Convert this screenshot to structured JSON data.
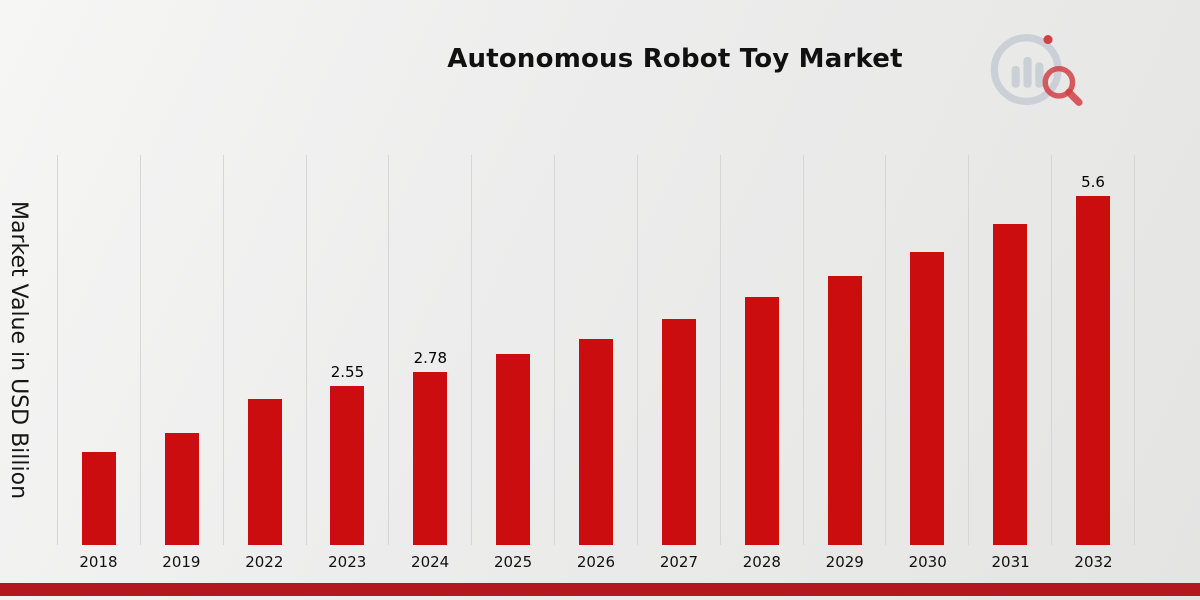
{
  "header": {
    "title": "Autonomous Robot Toy Market"
  },
  "colors": {
    "bar": "#CC0D10",
    "footer_strip": "#B2181D",
    "gridline": "#D6D6D6",
    "logo_gray": "#C9CED6",
    "logo_red": "#CF3338"
  },
  "chart_data": {
    "type": "bar",
    "title": "Autonomous Robot Toy Market",
    "xlabel": "",
    "ylabel": "Market Value in USD Billion",
    "categories": [
      "2018",
      "2019",
      "2022",
      "2023",
      "2024",
      "2025",
      "2026",
      "2027",
      "2028",
      "2029",
      "2030",
      "2031",
      "2032"
    ],
    "values": [
      1.49,
      1.8,
      2.34,
      2.55,
      2.78,
      3.06,
      3.3,
      3.62,
      3.97,
      4.31,
      4.7,
      5.14,
      5.6
    ],
    "point_labels": [
      "",
      "",
      "",
      "2.55",
      "2.78",
      "",
      "",
      "",
      "",
      "",
      "",
      "",
      "5.6"
    ],
    "ylim": [
      0,
      6.25
    ],
    "grid": "vertical",
    "bar_color": "#CC0D10",
    "legend": "none"
  }
}
